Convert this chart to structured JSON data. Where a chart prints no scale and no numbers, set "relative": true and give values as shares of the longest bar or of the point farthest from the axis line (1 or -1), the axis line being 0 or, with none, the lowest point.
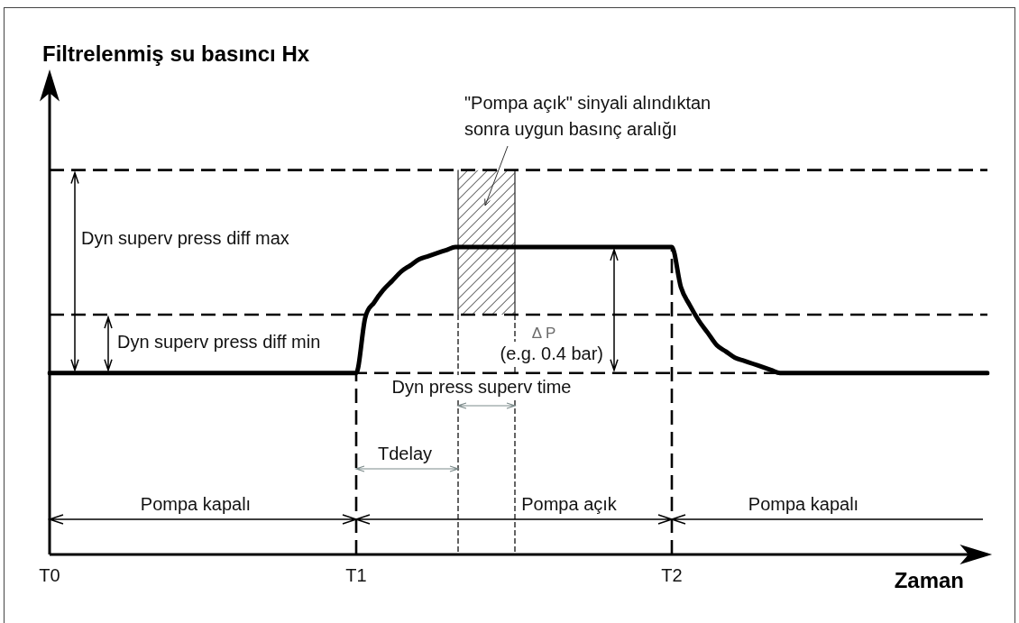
{
  "chart_data": {
    "type": "line",
    "relative": true,
    "xlabel": "Zaman",
    "categories": [
      "T0",
      null,
      null,
      null,
      null,
      null,
      null,
      null,
      null,
      null,
      null,
      null,
      null,
      null,
      null,
      null,
      null,
      null,
      null,
      null,
      null,
      null,
      null,
      null,
      null,
      null,
      null,
      null,
      null,
      null,
      null,
      null,
      null,
      null,
      "T1",
      null,
      null,
      null,
      null,
      null,
      null,
      null,
      null,
      null,
      null,
      null,
      null,
      null,
      null,
      null,
      null,
      null,
      null,
      null,
      null,
      null,
      null,
      null,
      null,
      null,
      null,
      null,
      null,
      null,
      null,
      null,
      null,
      null,
      null,
      "T2",
      null,
      null,
      null,
      null,
      null,
      null,
      null,
      null,
      null,
      null,
      null,
      null,
      null,
      null,
      null,
      null,
      null,
      null,
      null,
      null,
      null,
      null,
      null,
      null,
      null,
      null,
      null,
      null,
      null,
      null,
      null,
      null,
      null,
      null,
      null
    ],
    "values": [
      0.59,
      0.59,
      0.59,
      0.59,
      0.59,
      0.59,
      0.59,
      0.59,
      0.59,
      0.59,
      0.59,
      0.59,
      0.59,
      0.59,
      0.59,
      0.59,
      0.59,
      0.59,
      0.59,
      0.59,
      0.59,
      0.59,
      0.59,
      0.59,
      0.59,
      0.59,
      0.59,
      0.59,
      0.59,
      0.59,
      0.59,
      0.59,
      0.59,
      0.59,
      0.59,
      0.77,
      0.82,
      0.86,
      0.89,
      0.92,
      0.94,
      0.96,
      0.97,
      0.98,
      0.99,
      1,
      1,
      1,
      1,
      1,
      1,
      1,
      1,
      1,
      1,
      1,
      1,
      1,
      1,
      1,
      1,
      1,
      1,
      1,
      1,
      1,
      1,
      1,
      1,
      1,
      0.87,
      0.81,
      0.76,
      0.72,
      0.68,
      0.66,
      0.64,
      0.63,
      0.62,
      0.61,
      0.6,
      0.59,
      0.59,
      0.59,
      0.59,
      0.59,
      0.59,
      0.59,
      0.59,
      0.59,
      0.59,
      0.59,
      0.59,
      0.59,
      0.59,
      0.59,
      0.59,
      0.59,
      0.59,
      0.59,
      0.59,
      0.59,
      0.59,
      0.59,
      0.59
    ],
    "color": "#000000",
    "marker": "none",
    "ref_lines": [
      {
        "axis": "y",
        "value": 1.25,
        "line_style": "dashed"
      },
      {
        "axis": "y",
        "value": 0.78,
        "line_style": "dashed"
      },
      {
        "axis": "y",
        "value": 0.59,
        "line_style": "dashed"
      },
      {
        "axis": "x",
        "value": "T1",
        "line_style": "dashed"
      },
      {
        "axis": "x",
        "value": "T2",
        "line_style": "dashed"
      }
    ],
    "annotations": [
      "Filtrelenmiş su basıncı Hx",
      "\"Pompa açık\" sinyali alındıktan sonra uygun basınç aralığı",
      "Dyn superv press diff max",
      "Dyn superv press diff min",
      "Δ P",
      "(e.g. 0.4 bar)",
      "Dyn press superv time",
      "Tdelay",
      "Pompa kapalı",
      "Pompa açık",
      "Pompa kapalı"
    ]
  }
}
